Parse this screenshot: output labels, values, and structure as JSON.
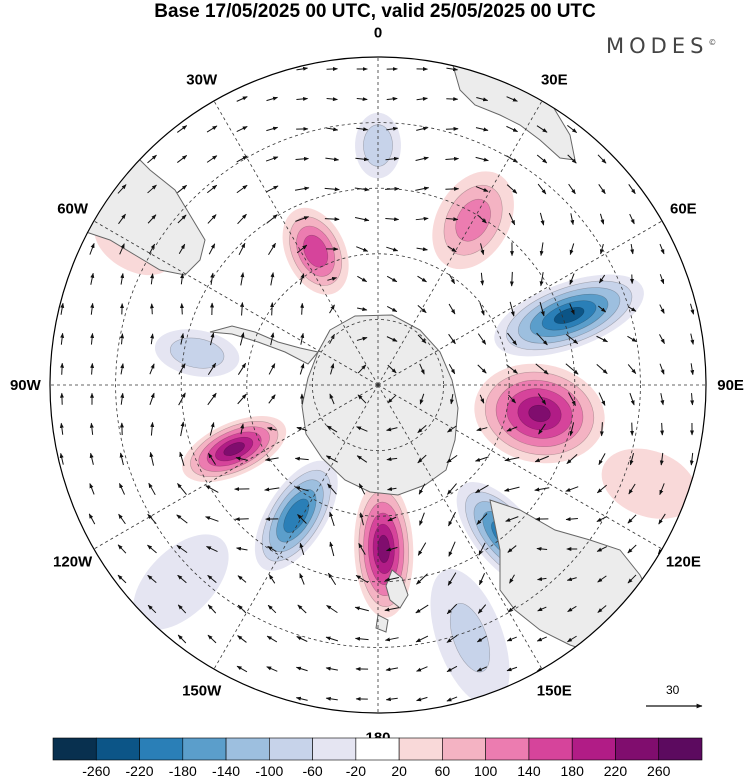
{
  "title": "Base 17/05/2025 00 UTC, valid 25/05/2025 00 UTC",
  "brand": "MODES",
  "brand_mark": "©",
  "longitude_labels": [
    "0",
    "30E",
    "60E",
    "90E",
    "120E",
    "150E",
    "180",
    "150W",
    "120W",
    "90W",
    "60W",
    "30W"
  ],
  "reference_vector": "30",
  "colorbar": {
    "ticks": [
      "-260",
      "-220",
      "-180",
      "-140",
      "-100",
      "-60",
      "-20",
      "20",
      "60",
      "100",
      "140",
      "180",
      "220",
      "260"
    ],
    "colors": [
      "#08304f",
      "#0c5587",
      "#2a7fb7",
      "#5b9ecb",
      "#9dbfdf",
      "#c7d3ea",
      "#e5e5f2",
      "#ffffff",
      "#f9d9d9",
      "#f4b3c3",
      "#ec7cb0",
      "#d6449b",
      "#b11c86",
      "#800d6e",
      "#5c0a5f"
    ]
  },
  "anomalies": [
    {
      "lon": 70,
      "rad": 0.62,
      "val": -230,
      "rx": 0.24,
      "ry": 0.1
    },
    {
      "lon": 100,
      "rad": 0.5,
      "val": 220,
      "rx": 0.2,
      "ry": 0.15
    },
    {
      "lon": 140,
      "rad": 0.6,
      "val": -200,
      "rx": 0.2,
      "ry": 0.09
    },
    {
      "lon": 178,
      "rad": 0.5,
      "val": 230,
      "rx": 0.21,
      "ry": 0.09
    },
    {
      "lon": 212,
      "rad": 0.47,
      "val": -210,
      "rx": 0.19,
      "ry": 0.09
    },
    {
      "lon": 246,
      "rad": 0.48,
      "val": 230,
      "rx": 0.17,
      "ry": 0.08
    },
    {
      "lon": 280,
      "rad": 0.56,
      "val": -90,
      "rx": 0.13,
      "ry": 0.07
    },
    {
      "lon": 335,
      "rad": 0.45,
      "val": 170,
      "rx": 0.14,
      "ry": 0.09
    },
    {
      "lon": 30,
      "rad": 0.58,
      "val": 120,
      "rx": 0.16,
      "ry": 0.11
    },
    {
      "lon": 0,
      "rad": 0.73,
      "val": -90,
      "rx": 0.1,
      "ry": 0.07
    },
    {
      "lon": 300,
      "rad": 0.86,
      "val": 40,
      "rx": 0.13,
      "ry": 0.08
    },
    {
      "lon": 160,
      "rad": 0.82,
      "val": -60,
      "rx": 0.22,
      "ry": 0.1
    },
    {
      "lon": 225,
      "rad": 0.85,
      "val": -50,
      "rx": 0.18,
      "ry": 0.1
    },
    {
      "lon": 110,
      "rad": 0.88,
      "val": 50,
      "rx": 0.15,
      "ry": 0.1
    }
  ]
}
